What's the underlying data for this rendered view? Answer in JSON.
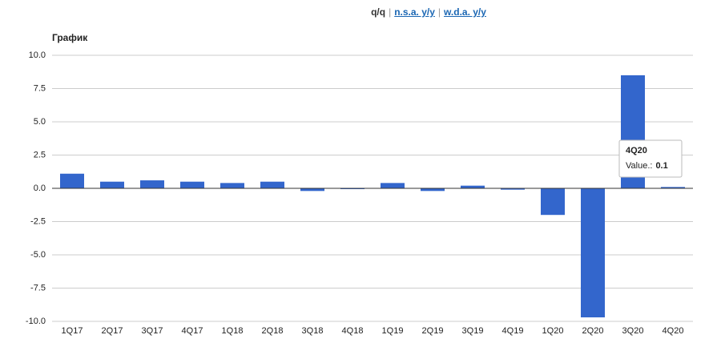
{
  "nav": {
    "items": [
      "q/q",
      "n.s.a. y/y",
      "w.d.a. y/y"
    ],
    "separator": "|"
  },
  "chart_data": {
    "type": "bar",
    "title": "График",
    "categories": [
      "1Q17",
      "2Q17",
      "3Q17",
      "4Q17",
      "1Q18",
      "2Q18",
      "3Q18",
      "4Q18",
      "1Q19",
      "2Q19",
      "3Q19",
      "4Q19",
      "1Q20",
      "2Q20",
      "3Q20",
      "4Q20"
    ],
    "values": [
      1.1,
      0.5,
      0.6,
      0.5,
      0.4,
      0.5,
      -0.2,
      0.0,
      0.4,
      -0.2,
      0.2,
      -0.1,
      -2.0,
      -9.7,
      8.5,
      0.1
    ],
    "color": "#3366cc",
    "ylim": [
      -10,
      10
    ],
    "yticks": [
      {
        "value": 10,
        "label": "10.0"
      },
      7.5,
      {
        "value": 5,
        "label": "5.0"
      },
      2.5,
      {
        "value": 0,
        "label": "0.0"
      },
      -2.5,
      {
        "value": -5,
        "label": "-5.0"
      },
      -7.5,
      {
        "value": -10,
        "label": "-10.0"
      }
    ],
    "grid": true,
    "tooltip": {
      "label": "Value.:"
    }
  }
}
